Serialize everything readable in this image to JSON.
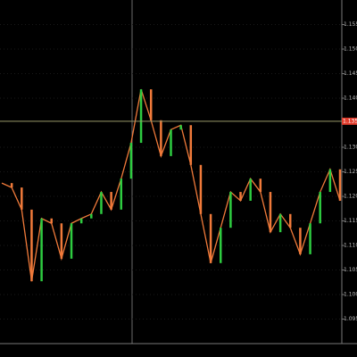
{
  "chart_data": {
    "type": "line",
    "color": "#f07a3a",
    "values": [
      1.1227,
      1.1218,
      1.1173,
      1.1027,
      1.1155,
      1.1145,
      1.1073,
      1.1145,
      1.1155,
      1.1164,
      1.1209,
      1.1173,
      1.1236,
      1.1309,
      1.1418,
      1.1355,
      1.1282,
      1.1336,
      1.1345,
      1.1264,
      1.1164,
      1.1064,
      1.1136,
      1.1209,
      1.1191,
      1.1236,
      1.1209,
      1.1127,
      1.1164,
      1.1136,
      1.1082,
      1.1145,
      1.1209,
      1.1255,
      1.1191
    ],
    "ylim": [
      1.09,
      1.16
    ],
    "yticks": [
      {
        "value": 1.095,
        "label": "1.0950"
      },
      {
        "value": 1.1,
        "label": "1.1000"
      },
      {
        "value": 1.105,
        "label": "1.1050"
      },
      {
        "value": 1.11,
        "label": "1.1100"
      },
      {
        "value": 1.115,
        "label": "1.1150"
      },
      {
        "value": 1.12,
        "label": "1.1200"
      },
      {
        "value": 1.125,
        "label": "1.1250"
      },
      {
        "value": 1.13,
        "label": "1.1300"
      },
      {
        "value": 1.14,
        "label": "1.1400"
      },
      {
        "value": 1.145,
        "label": "1.1450"
      },
      {
        "value": 1.15,
        "label": "1.1500"
      },
      {
        "value": 1.155,
        "label": "1.1550"
      }
    ],
    "price_line": {
      "value": 1.1353,
      "label": "1.1353"
    },
    "grid": true
  }
}
